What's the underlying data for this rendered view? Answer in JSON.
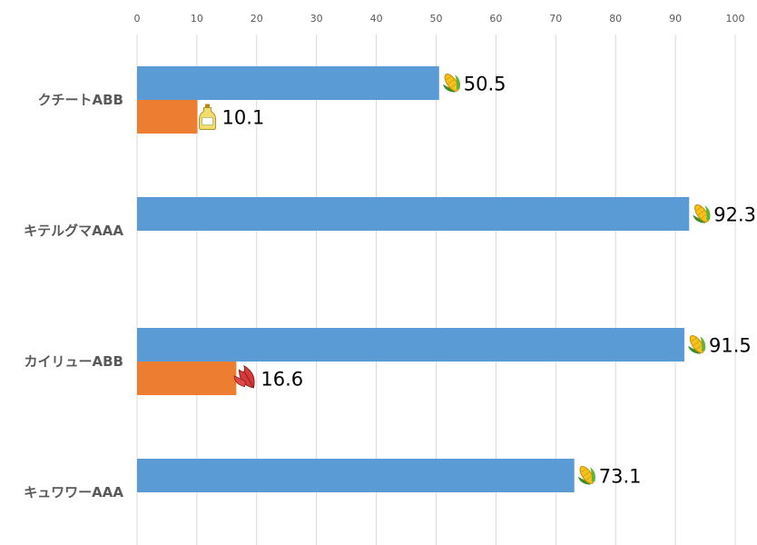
{
  "chart_data": {
    "type": "bar",
    "orientation": "horizontal",
    "xlim": [
      0,
      100
    ],
    "xticks": [
      0,
      10,
      20,
      30,
      40,
      50,
      60,
      70,
      80,
      90,
      100
    ],
    "x_axis_position": "top",
    "grid": true,
    "legend": "none",
    "categories": [
      "クチートABB",
      "キテルグマAAA",
      "カイリューABB",
      "キュワワーAAA"
    ],
    "series": [
      {
        "color": "#5b9bd5",
        "icon": "corn-icon",
        "values": [
          50.5,
          92.3,
          91.5,
          73.1
        ]
      },
      {
        "color": "#ed7d31",
        "icons": [
          "oil-bottle-icon",
          null,
          "red-leaf-icon",
          null
        ],
        "values": [
          10.1,
          null,
          16.6,
          null
        ]
      }
    ],
    "data_labels": [
      [
        "50.5",
        "92.3",
        "91.5",
        "73.1"
      ],
      [
        "10.1",
        "",
        "16.6",
        ""
      ]
    ]
  }
}
